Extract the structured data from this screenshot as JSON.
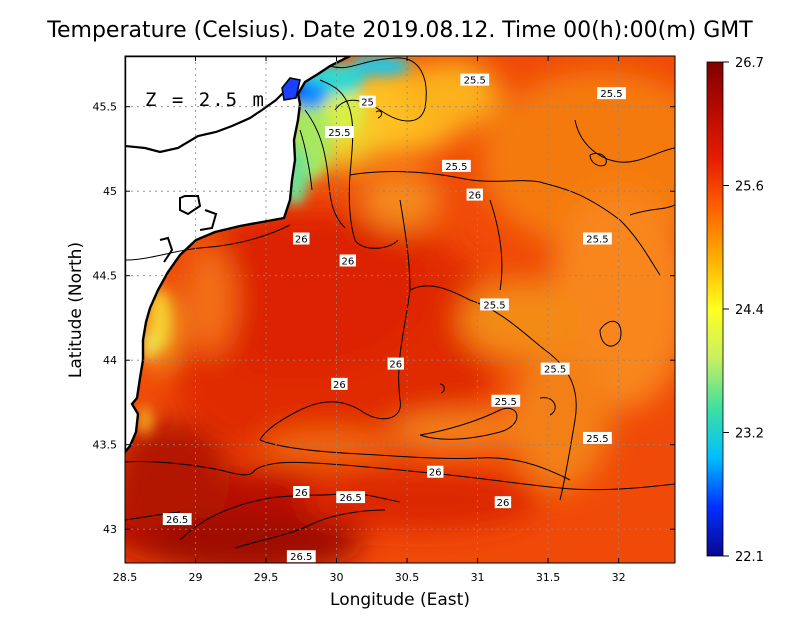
{
  "title": "Temperature (Celsius). Date 2019.08.12. Time 00(h):00(m)  GMT",
  "depth_label": "Z = 2.5 m",
  "x_axis": {
    "label": "Longitude (East)",
    "range": [
      28.5,
      32.4
    ],
    "ticks": [
      "28.5",
      "29",
      "29.5",
      "30",
      "30.5",
      "31",
      "31.5",
      "32"
    ]
  },
  "y_axis": {
    "label": "Latitude (North)",
    "range": [
      42.8,
      45.8
    ],
    "ticks": [
      "43",
      "43.5",
      "44",
      "44.5",
      "45",
      "45.5"
    ]
  },
  "colorbar": {
    "min": 22.1,
    "max": 26.7,
    "labels": [
      "26.7",
      "25.6",
      "24.4",
      "23.2",
      "22.1"
    ],
    "colors": [
      "#08088f",
      "#0030ff",
      "#00bfff",
      "#40e0a0",
      "#c8f060",
      "#ffff20",
      "#ffb000",
      "#ff6400",
      "#e81e00",
      "#b80a00",
      "#800000"
    ]
  },
  "contour_labels": [
    {
      "text": "25.5",
      "lon": 30.98,
      "lat": 45.66
    },
    {
      "text": "25.5",
      "lon": 31.95,
      "lat": 45.58
    },
    {
      "text": "25",
      "lon": 30.22,
      "lat": 45.53
    },
    {
      "text": "25.5",
      "lon": 30.02,
      "lat": 45.35
    },
    {
      "text": "25.5",
      "lon": 30.85,
      "lat": 45.15
    },
    {
      "text": "26",
      "lon": 30.98,
      "lat": 44.98
    },
    {
      "text": "26",
      "lon": 29.75,
      "lat": 44.72
    },
    {
      "text": "26",
      "lon": 30.08,
      "lat": 44.59
    },
    {
      "text": "25.5",
      "lon": 31.85,
      "lat": 44.72
    },
    {
      "text": "25.5",
      "lon": 31.12,
      "lat": 44.33
    },
    {
      "text": "26",
      "lon": 30.42,
      "lat": 43.98
    },
    {
      "text": "25.5",
      "lon": 31.55,
      "lat": 43.95
    },
    {
      "text": "26",
      "lon": 30.02,
      "lat": 43.86
    },
    {
      "text": "25.5",
      "lon": 31.2,
      "lat": 43.76
    },
    {
      "text": "25.5",
      "lon": 31.85,
      "lat": 43.54
    },
    {
      "text": "26",
      "lon": 30.7,
      "lat": 43.34
    },
    {
      "text": "26",
      "lon": 29.75,
      "lat": 43.22
    },
    {
      "text": "26.5",
      "lon": 30.1,
      "lat": 43.19
    },
    {
      "text": "26",
      "lon": 31.18,
      "lat": 43.16
    },
    {
      "text": "26.5",
      "lon": 28.87,
      "lat": 43.06
    },
    {
      "text": "26.5",
      "lon": 29.75,
      "lat": 42.84
    }
  ]
}
